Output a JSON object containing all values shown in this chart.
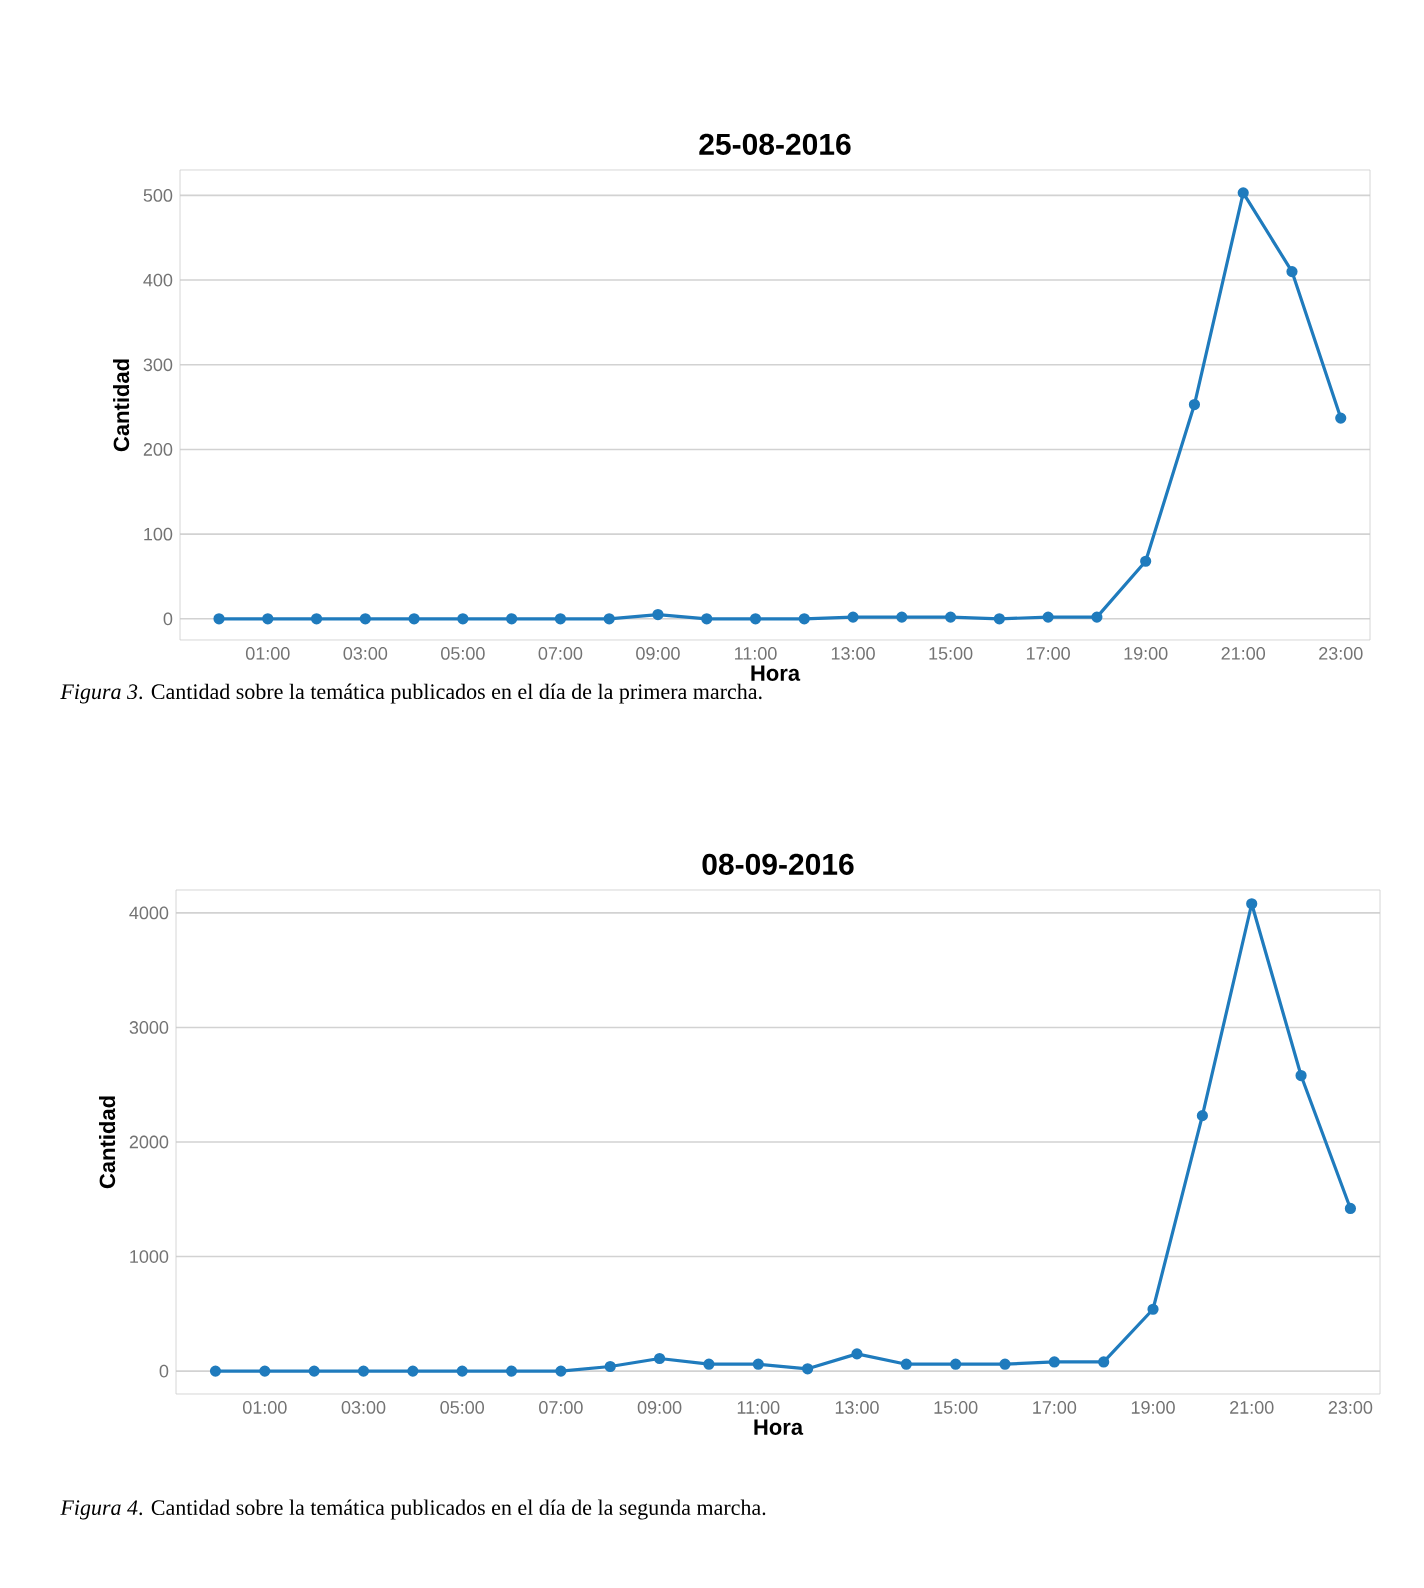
{
  "chart_data": [
    {
      "type": "line",
      "title": "25-08-2016",
      "xlabel": "Hora",
      "ylabel": "Cantidad",
      "color": "#1f7bbd",
      "marker": "circle",
      "line_style": "solid",
      "grid": "y",
      "x": [
        0,
        1,
        2,
        3,
        4,
        5,
        6,
        7,
        8,
        9,
        10,
        11,
        12,
        13,
        14,
        15,
        16,
        17,
        18,
        19,
        20,
        21,
        22,
        23
      ],
      "values": [
        0,
        0,
        0,
        0,
        0,
        0,
        0,
        0,
        0,
        5,
        0,
        0,
        0,
        2,
        2,
        2,
        0,
        2,
        2,
        68,
        253,
        503,
        410,
        237
      ],
      "xlim": [
        -0.8,
        23.6
      ],
      "ylim": [
        -25,
        530
      ],
      "xticks": [
        {
          "value": 1,
          "label": "01:00"
        },
        {
          "value": 3,
          "label": "03:00"
        },
        {
          "value": 5,
          "label": "05:00"
        },
        {
          "value": 7,
          "label": "07:00"
        },
        {
          "value": 9,
          "label": "09:00"
        },
        {
          "value": 11,
          "label": "11:00"
        },
        {
          "value": 13,
          "label": "13:00"
        },
        {
          "value": 15,
          "label": "15:00"
        },
        {
          "value": 17,
          "label": "17:00"
        },
        {
          "value": 19,
          "label": "19:00"
        },
        {
          "value": 21,
          "label": "21:00"
        },
        {
          "value": 23,
          "label": "23:00"
        }
      ],
      "yticks": [
        0,
        100,
        200,
        300,
        400,
        500
      ],
      "annotations": [
        "*Figura 3*. Cantidad sobre la temática publicados en el día de la primera marcha."
      ]
    },
    {
      "type": "line",
      "title": "08-09-2016",
      "xlabel": "Hora",
      "ylabel": "Cantidad",
      "color": "#1f7bbd",
      "marker": "circle",
      "line_style": "solid",
      "grid": "y",
      "x": [
        0,
        1,
        2,
        3,
        4,
        5,
        6,
        7,
        8,
        9,
        10,
        11,
        12,
        13,
        14,
        15,
        16,
        17,
        18,
        19,
        20,
        21,
        22,
        23
      ],
      "values": [
        0,
        0,
        0,
        0,
        0,
        0,
        0,
        0,
        40,
        110,
        60,
        60,
        20,
        150,
        60,
        60,
        60,
        80,
        80,
        540,
        2230,
        4080,
        2580,
        1420
      ],
      "xlim": [
        -0.8,
        23.6
      ],
      "ylim": [
        -200,
        4200
      ],
      "xticks": [
        {
          "value": 1,
          "label": "01:00"
        },
        {
          "value": 3,
          "label": "03:00"
        },
        {
          "value": 5,
          "label": "05:00"
        },
        {
          "value": 7,
          "label": "07:00"
        },
        {
          "value": 9,
          "label": "09:00"
        },
        {
          "value": 11,
          "label": "11:00"
        },
        {
          "value": 13,
          "label": "13:00"
        },
        {
          "value": 15,
          "label": "15:00"
        },
        {
          "value": 17,
          "label": "17:00"
        },
        {
          "value": 19,
          "label": "19:00"
        },
        {
          "value": 21,
          "label": "21:00"
        },
        {
          "value": 23,
          "label": "23:00"
        }
      ],
      "yticks": [
        0,
        1000,
        2000,
        3000,
        4000
      ],
      "annotations": [
        "*Figura 4*. Cantidad sobre la temática publicados en el día de la segunda marcha."
      ]
    }
  ]
}
